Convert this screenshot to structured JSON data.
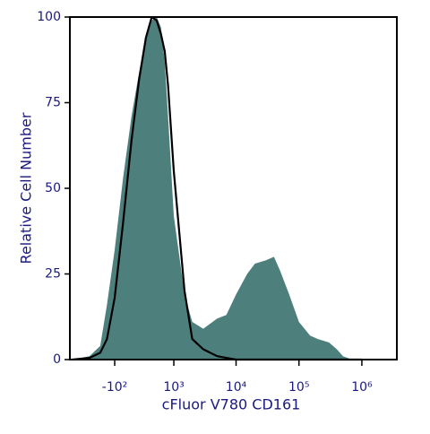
{
  "chart_data": {
    "type": "histogram-overlay",
    "xlabel": "cFluor V780 CD161",
    "ylabel": "Relative Cell Number",
    "xscale": {
      "type": "arcsinh",
      "cofactor": 320
    },
    "xlim": [
      -1100,
      3600000
    ],
    "ylim": [
      0,
      100
    ],
    "xticks": [
      {
        "value": -100,
        "label": "-10²"
      },
      {
        "value": 1000,
        "label": "10³"
      },
      {
        "value": 10000,
        "label": "10⁴"
      },
      {
        "value": 100000,
        "label": "10⁵"
      },
      {
        "value": 1000000,
        "label": "10⁶"
      }
    ],
    "yticks": [
      0,
      25,
      50,
      75,
      100
    ],
    "x": [
      -1000,
      -500,
      -300,
      -200,
      -100,
      0,
      100,
      200,
      300,
      400,
      500,
      600,
      700,
      800,
      1000,
      1500,
      2000,
      3000,
      5000,
      7000,
      10000,
      15000,
      20000,
      30000,
      40000,
      50000,
      70000,
      100000,
      150000,
      200000,
      300000,
      400000,
      500000,
      700000,
      1000000
    ],
    "series": [
      {
        "style": "filled",
        "color": "#4d7f7c",
        "values": [
          0,
          1,
          4,
          16,
          32,
          53,
          71,
          84,
          94,
          99,
          100,
          97,
          87,
          71,
          42,
          19,
          11,
          9,
          12,
          13,
          19,
          25,
          28,
          29,
          30,
          26,
          19,
          11,
          7,
          6,
          5,
          3,
          1,
          0,
          0
        ]
      },
      {
        "style": "line",
        "color": "#000000",
        "values": [
          0,
          0.5,
          2,
          6,
          18,
          40,
          64,
          82,
          94,
          100,
          99,
          95,
          90,
          80,
          55,
          20,
          6,
          3,
          1,
          0.5,
          0,
          0,
          0,
          0,
          0,
          0,
          0,
          0,
          0,
          0,
          0,
          0,
          0,
          0,
          0
        ]
      }
    ]
  }
}
